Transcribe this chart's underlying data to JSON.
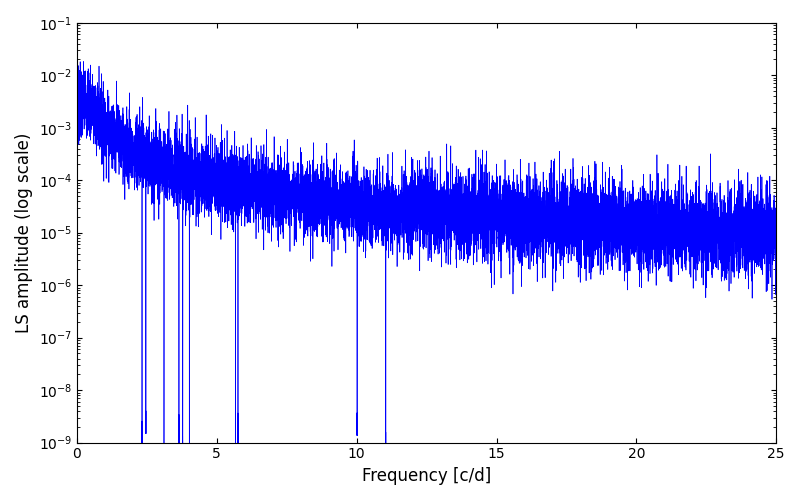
{
  "title": "",
  "xlabel": "Frequency [c/d]",
  "ylabel": "LS amplitude (log scale)",
  "xlim": [
    0,
    25
  ],
  "ylim_log": [
    1e-09,
    0.1
  ],
  "line_color": "#0000ff",
  "line_width": 0.5,
  "yscale": "log",
  "freq_min": 0.0,
  "freq_max": 25.0,
  "n_points": 10000,
  "seed": 7,
  "background_color": "#ffffff",
  "figsize": [
    8.0,
    5.0
  ],
  "dpi": 100
}
